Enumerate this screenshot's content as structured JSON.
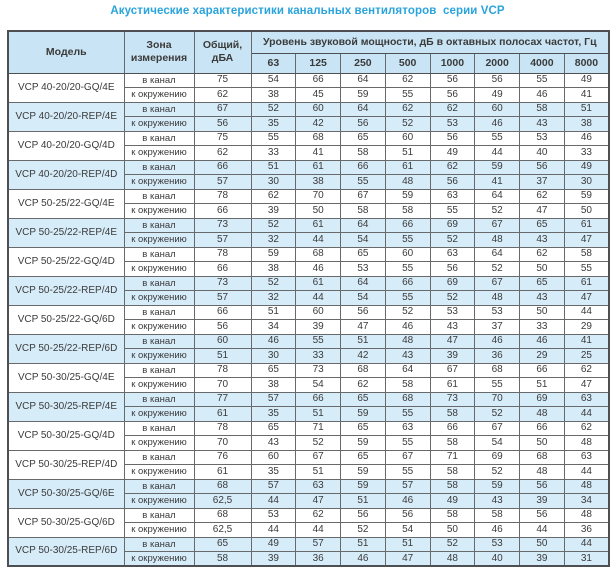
{
  "title": "Акустические характеристики канальных вентиляторов  серии VCP",
  "colors": {
    "accent": "#2aa4dc",
    "header_bg": "#c9e5f5",
    "row_highlight": "#d7ecf9",
    "border_dark": "#4d4f52",
    "text": "#3b3b3b"
  },
  "table": {
    "col_model": "Модель",
    "col_zone": "Зона\nизмерения",
    "col_total": "Общий,\nдБА",
    "col_group": "Уровень звуковой мощности, дБ в октавных полосах частот, Гц",
    "frequencies": [
      "63",
      "125",
      "250",
      "500",
      "1000",
      "2000",
      "4000",
      "8000"
    ],
    "zone_in": "в канал",
    "zone_out": "к окружению",
    "rows": [
      {
        "model": "VCP 40-20/20-GQ/4E",
        "highlight": false,
        "in_duct": {
          "total": "75",
          "levels": [
            "54",
            "66",
            "64",
            "62",
            "56",
            "56",
            "55",
            "49"
          ]
        },
        "to_ambient": {
          "total": "62",
          "levels": [
            "38",
            "45",
            "59",
            "55",
            "56",
            "49",
            "46",
            "41"
          ]
        }
      },
      {
        "model": "VCP 40-20/20-REP/4E",
        "highlight": true,
        "in_duct": {
          "total": "67",
          "levels": [
            "52",
            "60",
            "64",
            "62",
            "62",
            "60",
            "58",
            "51"
          ]
        },
        "to_ambient": {
          "total": "56",
          "levels": [
            "35",
            "42",
            "56",
            "52",
            "53",
            "46",
            "43",
            "38"
          ]
        }
      },
      {
        "model": "VCP 40-20/20-GQ/4D",
        "highlight": false,
        "in_duct": {
          "total": "75",
          "levels": [
            "55",
            "68",
            "65",
            "60",
            "56",
            "55",
            "53",
            "46"
          ]
        },
        "to_ambient": {
          "total": "62",
          "levels": [
            "33",
            "41",
            "58",
            "51",
            "49",
            "44",
            "40",
            "33"
          ]
        }
      },
      {
        "model": "VCP 40-20/20-REP/4D",
        "highlight": true,
        "in_duct": {
          "total": "66",
          "levels": [
            "51",
            "61",
            "66",
            "61",
            "62",
            "59",
            "56",
            "49"
          ]
        },
        "to_ambient": {
          "total": "57",
          "levels": [
            "30",
            "38",
            "55",
            "48",
            "56",
            "41",
            "37",
            "30"
          ]
        }
      },
      {
        "model": "VCP 50-25/22-GQ/4E",
        "highlight": false,
        "in_duct": {
          "total": "78",
          "levels": [
            "62",
            "70",
            "67",
            "59",
            "63",
            "64",
            "62",
            "59"
          ]
        },
        "to_ambient": {
          "total": "66",
          "levels": [
            "39",
            "50",
            "58",
            "58",
            "55",
            "52",
            "47",
            "50"
          ]
        }
      },
      {
        "model": "VCP 50-25/22-REP/4E",
        "highlight": true,
        "in_duct": {
          "total": "73",
          "levels": [
            "52",
            "61",
            "64",
            "66",
            "69",
            "67",
            "65",
            "61"
          ]
        },
        "to_ambient": {
          "total": "57",
          "levels": [
            "32",
            "44",
            "54",
            "55",
            "52",
            "48",
            "43",
            "47"
          ]
        }
      },
      {
        "model": "VCP 50-25/22-GQ/4D",
        "highlight": false,
        "in_duct": {
          "total": "78",
          "levels": [
            "59",
            "68",
            "65",
            "60",
            "63",
            "64",
            "62",
            "58"
          ]
        },
        "to_ambient": {
          "total": "66",
          "levels": [
            "38",
            "46",
            "53",
            "55",
            "56",
            "52",
            "50",
            "55"
          ]
        }
      },
      {
        "model": "VCP 50-25/22-REP/4D",
        "highlight": true,
        "in_duct": {
          "total": "73",
          "levels": [
            "52",
            "61",
            "64",
            "66",
            "69",
            "67",
            "65",
            "61"
          ]
        },
        "to_ambient": {
          "total": "57",
          "levels": [
            "32",
            "44",
            "54",
            "55",
            "52",
            "48",
            "43",
            "47"
          ]
        }
      },
      {
        "model": "VCP 50-25/22-GQ/6D",
        "highlight": false,
        "in_duct": {
          "total": "66",
          "levels": [
            "51",
            "60",
            "56",
            "52",
            "53",
            "53",
            "50",
            "44"
          ]
        },
        "to_ambient": {
          "total": "56",
          "levels": [
            "34",
            "39",
            "47",
            "46",
            "43",
            "37",
            "33",
            "29"
          ]
        }
      },
      {
        "model": "VCP 50-25/22-REP/6D",
        "highlight": true,
        "in_duct": {
          "total": "60",
          "levels": [
            "46",
            "55",
            "51",
            "48",
            "47",
            "46",
            "46",
            "41"
          ]
        },
        "to_ambient": {
          "total": "51",
          "levels": [
            "30",
            "33",
            "42",
            "43",
            "39",
            "36",
            "29",
            "25"
          ]
        }
      },
      {
        "model": "VCP 50-30/25-GQ/4E",
        "highlight": false,
        "in_duct": {
          "total": "78",
          "levels": [
            "65",
            "73",
            "68",
            "64",
            "67",
            "68",
            "66",
            "62"
          ]
        },
        "to_ambient": {
          "total": "70",
          "levels": [
            "38",
            "54",
            "62",
            "58",
            "61",
            "55",
            "51",
            "47"
          ]
        }
      },
      {
        "model": "VCP 50-30/25-REP/4E",
        "highlight": true,
        "in_duct": {
          "total": "77",
          "levels": [
            "57",
            "66",
            "65",
            "68",
            "73",
            "70",
            "69",
            "63"
          ]
        },
        "to_ambient": {
          "total": "61",
          "levels": [
            "35",
            "51",
            "59",
            "55",
            "58",
            "52",
            "48",
            "44"
          ]
        }
      },
      {
        "model": "VCP 50-30/25-GQ/4D",
        "highlight": false,
        "in_duct": {
          "total": "78",
          "levels": [
            "65",
            "71",
            "65",
            "63",
            "66",
            "67",
            "66",
            "62"
          ]
        },
        "to_ambient": {
          "total": "70",
          "levels": [
            "43",
            "52",
            "59",
            "55",
            "58",
            "54",
            "50",
            "48"
          ]
        }
      },
      {
        "model": "VCP 50-30/25-REP/4D",
        "highlight": false,
        "in_duct": {
          "total": "76",
          "levels": [
            "60",
            "67",
            "65",
            "67",
            "71",
            "69",
            "68",
            "63"
          ]
        },
        "to_ambient": {
          "total": "61",
          "levels": [
            "35",
            "51",
            "59",
            "55",
            "58",
            "52",
            "48",
            "44"
          ]
        }
      },
      {
        "model": "VCP 50-30/25-GQ/6E",
        "highlight": true,
        "in_duct": {
          "total": "68",
          "levels": [
            "57",
            "63",
            "59",
            "57",
            "58",
            "59",
            "56",
            "48"
          ]
        },
        "to_ambient": {
          "total": "62,5",
          "levels": [
            "44",
            "47",
            "51",
            "46",
            "49",
            "43",
            "39",
            "34"
          ]
        }
      },
      {
        "model": "VCP 50-30/25-GQ/6D",
        "highlight": false,
        "in_duct": {
          "total": "68",
          "levels": [
            "53",
            "62",
            "56",
            "56",
            "58",
            "58",
            "56",
            "48"
          ]
        },
        "to_ambient": {
          "total": "62,5",
          "levels": [
            "44",
            "44",
            "52",
            "54",
            "50",
            "46",
            "44",
            "36"
          ]
        }
      },
      {
        "model": "VCP 50-30/25-REP/6D",
        "highlight": true,
        "in_duct": {
          "total": "65",
          "levels": [
            "49",
            "57",
            "51",
            "51",
            "52",
            "53",
            "50",
            "44"
          ]
        },
        "to_ambient": {
          "total": "58",
          "levels": [
            "39",
            "36",
            "46",
            "47",
            "48",
            "40",
            "39",
            "31"
          ]
        }
      }
    ]
  }
}
